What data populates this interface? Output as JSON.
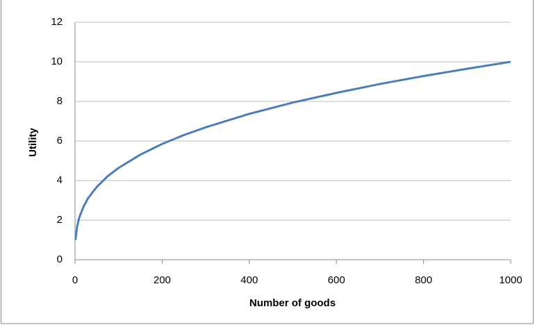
{
  "chart_data": {
    "type": "line",
    "x_label": "Number of goods",
    "y_label": "Utility",
    "x": [
      1,
      5,
      10,
      20,
      30,
      50,
      75,
      100,
      150,
      200,
      250,
      300,
      400,
      500,
      600,
      700,
      800,
      900,
      1000
    ],
    "series": [
      {
        "name": "Utility",
        "color": "#4a7ebb",
        "values": [
          1,
          1.71,
          2.15,
          2.71,
          3.11,
          3.68,
          4.22,
          4.64,
          5.31,
          5.85,
          6.3,
          6.69,
          7.37,
          7.94,
          8.43,
          8.88,
          9.28,
          9.65,
          10
        ]
      }
    ],
    "xlim": [
      0,
      1000
    ],
    "xticks": [
      0,
      200,
      400,
      600,
      800,
      1000
    ],
    "ylim": [
      0,
      12
    ],
    "yticks": [
      0,
      2,
      4,
      6,
      8,
      10,
      12
    ],
    "grid": true
  }
}
